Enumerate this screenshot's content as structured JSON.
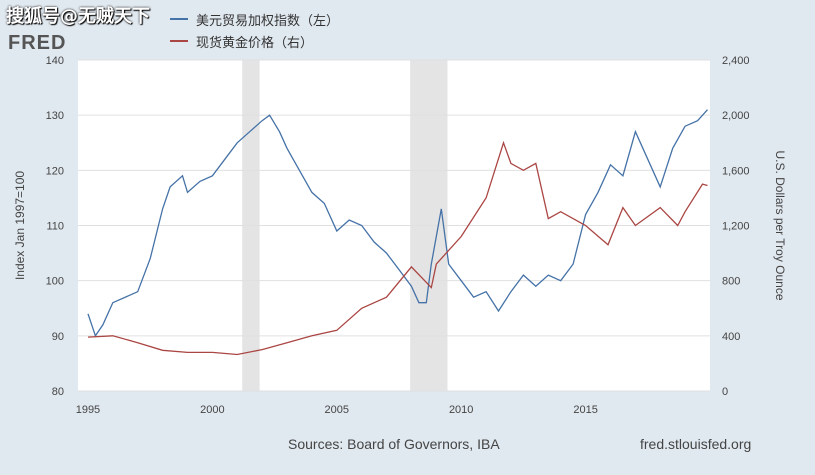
{
  "watermark": "搜狐号@无贼天下",
  "logo": "FRED",
  "chart_data": {
    "type": "line",
    "title": "",
    "xlabel": "",
    "ylabel": "Index Jan 1997=100",
    "y2label": "U.S. Dollars per Troy Ounce",
    "xlim": [
      1994.6,
      2020.0
    ],
    "ylim": [
      80,
      140
    ],
    "y2lim": [
      0,
      2400
    ],
    "xticks": [
      "1995",
      "2000",
      "2005",
      "2010",
      "2015"
    ],
    "yticks": [
      "80",
      "90",
      "100",
      "110",
      "120",
      "130",
      "140"
    ],
    "y2ticks": [
      "0",
      "400",
      "800",
      "1,200",
      "1,600",
      "2,000",
      "2,400"
    ],
    "grid": true,
    "legend_position": "top-left",
    "recessions": [
      [
        2001.2,
        2001.9
      ],
      [
        2007.95,
        2009.45
      ]
    ],
    "series": [
      {
        "name": "美元贸易加权指数（左）",
        "axis": "left",
        "color": "#4572a7",
        "x": [
          1995.0,
          1995.3,
          1995.6,
          1996,
          1997,
          1997.5,
          1998,
          1998.3,
          1998.8,
          1999,
          1999.5,
          2000,
          2000.5,
          2001,
          2001.5,
          2002,
          2002.3,
          2002.7,
          2003,
          2003.5,
          2004,
          2004.5,
          2005,
          2005.5,
          2006,
          2006.5,
          2007,
          2007.5,
          2008,
          2008.3,
          2008.6,
          2008.8,
          2009.2,
          2009.5,
          2010,
          2010.5,
          2011,
          2011.5,
          2012,
          2012.5,
          2013,
          2013.5,
          2014,
          2014.5,
          2015,
          2015.5,
          2016,
          2016.5,
          2017,
          2017.5,
          2018,
          2018.5,
          2019,
          2019.5,
          2019.9
        ],
        "y": [
          94,
          90,
          92,
          96,
          98,
          104,
          113,
          117,
          119,
          116,
          118,
          119,
          122,
          125,
          127,
          129,
          130,
          127,
          124,
          120,
          116,
          114,
          109,
          111,
          110,
          107,
          105,
          102,
          99,
          96,
          96,
          103,
          113,
          103,
          100,
          97,
          98,
          94.5,
          98,
          101,
          99,
          101,
          100,
          103,
          112,
          116,
          121,
          119,
          127,
          122,
          117,
          124,
          128,
          129,
          131
        ]
      },
      {
        "name": "现货黄金价格（右）",
        "axis": "right",
        "color": "#aa4643",
        "x": [
          1995,
          1996,
          1997,
          1998,
          1999,
          2000,
          2001,
          2002,
          2003,
          2004,
          2005,
          2006,
          2007,
          2008,
          2008.8,
          2009,
          2010,
          2011,
          2011.7,
          2012,
          2012.5,
          2013,
          2013.5,
          2014,
          2015,
          2015.9,
          2016.5,
          2017,
          2018,
          2018.7,
          2019,
          2019.7,
          2019.9
        ],
        "y": [
          391,
          400,
          350,
          295,
          280,
          280,
          265,
          300,
          350,
          400,
          440,
          600,
          680,
          900,
          750,
          920,
          1120,
          1400,
          1800,
          1650,
          1600,
          1650,
          1250,
          1300,
          1200,
          1060,
          1330,
          1200,
          1330,
          1200,
          1300,
          1500,
          1490
        ]
      }
    ]
  },
  "footer": {
    "sources": "Sources: Board of Governors, IBA",
    "site": "fred.stlouisfed.org"
  }
}
